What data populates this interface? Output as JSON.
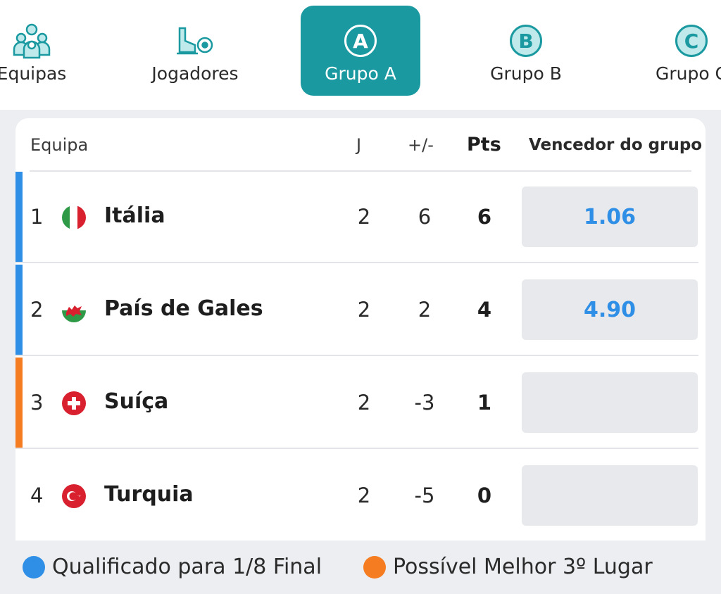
{
  "colors": {
    "accent": "#1a9aa0",
    "qualified": "#2f8fe6",
    "possible_third": "#f57c20"
  },
  "tabs": [
    {
      "label": "Equipas",
      "icon": "teams-icon",
      "active": false
    },
    {
      "label": "Jogadores",
      "icon": "player-boot-ball-icon",
      "active": false
    },
    {
      "label": "Grupo A",
      "badge": "A",
      "active": true
    },
    {
      "label": "Grupo B",
      "badge": "B",
      "active": false
    },
    {
      "label": "Grupo C",
      "badge": "C",
      "active": false
    }
  ],
  "table": {
    "headers": {
      "team": "Equipa",
      "played": "J",
      "goal_diff": "+/-",
      "points": "Pts",
      "group_winner": "Vencedor do grupo"
    },
    "rows": [
      {
        "pos": "1",
        "team": "Itália",
        "flag": "italy-flag-icon",
        "played": "2",
        "goal_diff": "6",
        "points": "6",
        "odds": "1.06",
        "status": "qualified"
      },
      {
        "pos": "2",
        "team": "País de Gales",
        "flag": "wales-flag-icon",
        "played": "2",
        "goal_diff": "2",
        "points": "4",
        "odds": "4.90",
        "status": "qualified"
      },
      {
        "pos": "3",
        "team": "Suíça",
        "flag": "switzerland-flag-icon",
        "played": "2",
        "goal_diff": "-3",
        "points": "1",
        "odds": "",
        "status": "possible_third"
      },
      {
        "pos": "4",
        "team": "Turquia",
        "flag": "turkey-flag-icon",
        "played": "2",
        "goal_diff": "-5",
        "points": "0",
        "odds": "",
        "status": "none"
      }
    ]
  },
  "legend": {
    "qualified": "Qualificado para 1/8 Final",
    "possible_third": "Possível Melhor 3º Lugar"
  }
}
